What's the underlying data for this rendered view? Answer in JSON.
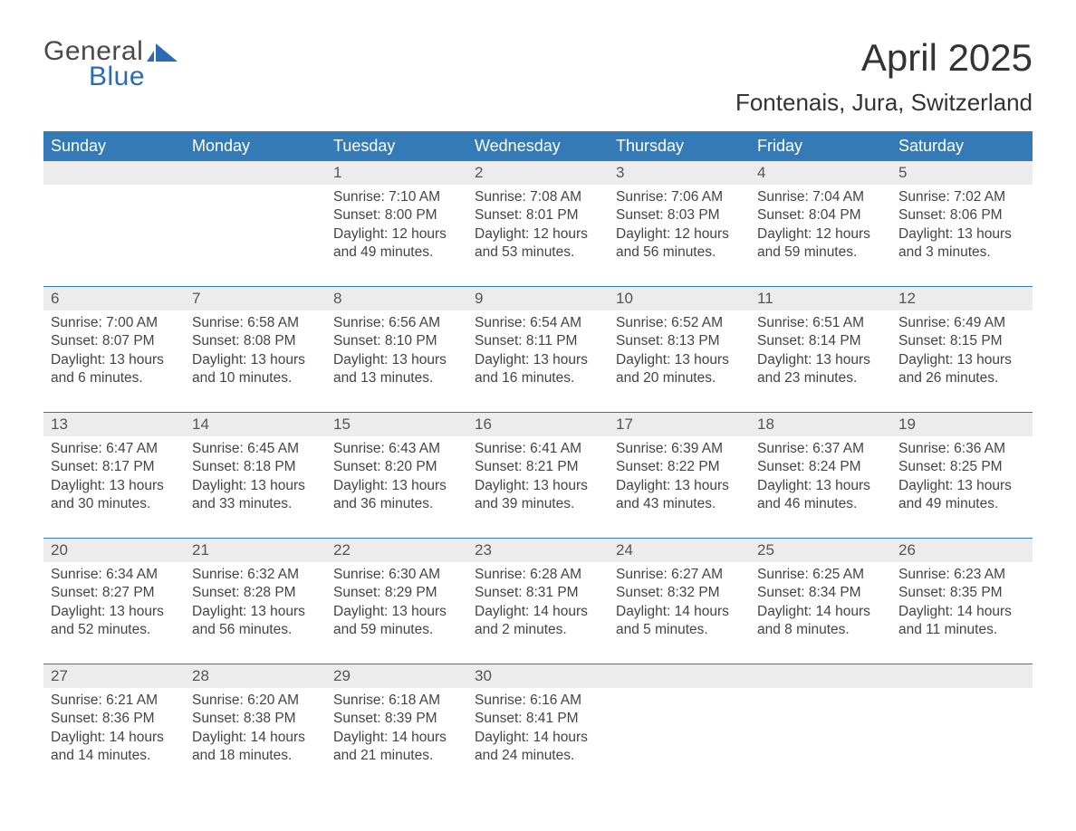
{
  "logo": {
    "word1": "General",
    "word2": "Blue",
    "mark_color": "#2b6bb3"
  },
  "title": "April 2025",
  "location": "Fontenais, Jura, Switzerland",
  "colors": {
    "header_bg": "#337ab7",
    "header_text": "#ffffff",
    "divider": "#337ab7",
    "day_number_bg": "#ececec",
    "body_text": "#444444",
    "page_bg": "#ffffff"
  },
  "dayHeaders": [
    "Sunday",
    "Monday",
    "Tuesday",
    "Wednesday",
    "Thursday",
    "Friday",
    "Saturday"
  ],
  "leadingBlanks": 2,
  "days": [
    {
      "n": 1,
      "sunrise": "7:10 AM",
      "sunset": "8:00 PM",
      "daylight": "12 hours and 49 minutes."
    },
    {
      "n": 2,
      "sunrise": "7:08 AM",
      "sunset": "8:01 PM",
      "daylight": "12 hours and 53 minutes."
    },
    {
      "n": 3,
      "sunrise": "7:06 AM",
      "sunset": "8:03 PM",
      "daylight": "12 hours and 56 minutes."
    },
    {
      "n": 4,
      "sunrise": "7:04 AM",
      "sunset": "8:04 PM",
      "daylight": "12 hours and 59 minutes."
    },
    {
      "n": 5,
      "sunrise": "7:02 AM",
      "sunset": "8:06 PM",
      "daylight": "13 hours and 3 minutes."
    },
    {
      "n": 6,
      "sunrise": "7:00 AM",
      "sunset": "8:07 PM",
      "daylight": "13 hours and 6 minutes."
    },
    {
      "n": 7,
      "sunrise": "6:58 AM",
      "sunset": "8:08 PM",
      "daylight": "13 hours and 10 minutes."
    },
    {
      "n": 8,
      "sunrise": "6:56 AM",
      "sunset": "8:10 PM",
      "daylight": "13 hours and 13 minutes."
    },
    {
      "n": 9,
      "sunrise": "6:54 AM",
      "sunset": "8:11 PM",
      "daylight": "13 hours and 16 minutes."
    },
    {
      "n": 10,
      "sunrise": "6:52 AM",
      "sunset": "8:13 PM",
      "daylight": "13 hours and 20 minutes."
    },
    {
      "n": 11,
      "sunrise": "6:51 AM",
      "sunset": "8:14 PM",
      "daylight": "13 hours and 23 minutes."
    },
    {
      "n": 12,
      "sunrise": "6:49 AM",
      "sunset": "8:15 PM",
      "daylight": "13 hours and 26 minutes."
    },
    {
      "n": 13,
      "sunrise": "6:47 AM",
      "sunset": "8:17 PM",
      "daylight": "13 hours and 30 minutes."
    },
    {
      "n": 14,
      "sunrise": "6:45 AM",
      "sunset": "8:18 PM",
      "daylight": "13 hours and 33 minutes."
    },
    {
      "n": 15,
      "sunrise": "6:43 AM",
      "sunset": "8:20 PM",
      "daylight": "13 hours and 36 minutes."
    },
    {
      "n": 16,
      "sunrise": "6:41 AM",
      "sunset": "8:21 PM",
      "daylight": "13 hours and 39 minutes."
    },
    {
      "n": 17,
      "sunrise": "6:39 AM",
      "sunset": "8:22 PM",
      "daylight": "13 hours and 43 minutes."
    },
    {
      "n": 18,
      "sunrise": "6:37 AM",
      "sunset": "8:24 PM",
      "daylight": "13 hours and 46 minutes."
    },
    {
      "n": 19,
      "sunrise": "6:36 AM",
      "sunset": "8:25 PM",
      "daylight": "13 hours and 49 minutes."
    },
    {
      "n": 20,
      "sunrise": "6:34 AM",
      "sunset": "8:27 PM",
      "daylight": "13 hours and 52 minutes."
    },
    {
      "n": 21,
      "sunrise": "6:32 AM",
      "sunset": "8:28 PM",
      "daylight": "13 hours and 56 minutes."
    },
    {
      "n": 22,
      "sunrise": "6:30 AM",
      "sunset": "8:29 PM",
      "daylight": "13 hours and 59 minutes."
    },
    {
      "n": 23,
      "sunrise": "6:28 AM",
      "sunset": "8:31 PM",
      "daylight": "14 hours and 2 minutes."
    },
    {
      "n": 24,
      "sunrise": "6:27 AM",
      "sunset": "8:32 PM",
      "daylight": "14 hours and 5 minutes."
    },
    {
      "n": 25,
      "sunrise": "6:25 AM",
      "sunset": "8:34 PM",
      "daylight": "14 hours and 8 minutes."
    },
    {
      "n": 26,
      "sunrise": "6:23 AM",
      "sunset": "8:35 PM",
      "daylight": "14 hours and 11 minutes."
    },
    {
      "n": 27,
      "sunrise": "6:21 AM",
      "sunset": "8:36 PM",
      "daylight": "14 hours and 14 minutes."
    },
    {
      "n": 28,
      "sunrise": "6:20 AM",
      "sunset": "8:38 PM",
      "daylight": "14 hours and 18 minutes."
    },
    {
      "n": 29,
      "sunrise": "6:18 AM",
      "sunset": "8:39 PM",
      "daylight": "14 hours and 21 minutes."
    },
    {
      "n": 30,
      "sunrise": "6:16 AM",
      "sunset": "8:41 PM",
      "daylight": "14 hours and 24 minutes."
    }
  ],
  "labels": {
    "sunrise": "Sunrise:",
    "sunset": "Sunset:",
    "daylight": "Daylight:"
  }
}
